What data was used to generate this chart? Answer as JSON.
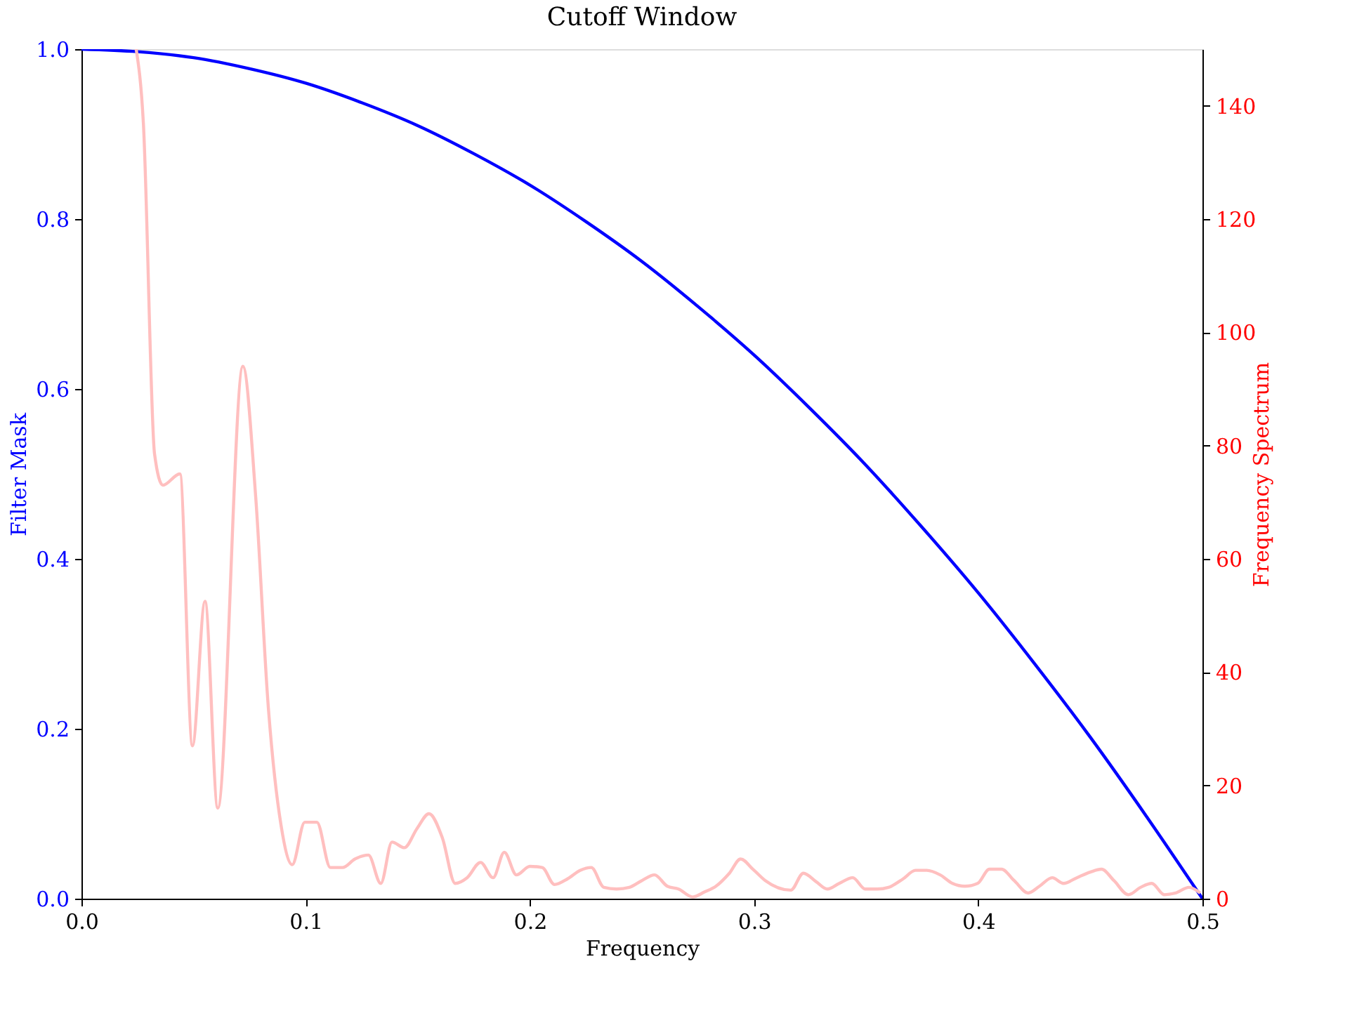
{
  "chart_data": {
    "type": "line",
    "title": "Cutoff Window",
    "xlabel": "Frequency",
    "ylabel": "Filter Mask",
    "y2label": "Frequency Spectrum",
    "xlim": [
      0,
      0.5
    ],
    "xticks": [
      {
        "value": 0,
        "label": "0.0"
      },
      0.1,
      0.2,
      0.3,
      0.4,
      0.5
    ],
    "ylim": [
      0,
      1
    ],
    "yticks": [
      {
        "value": 0,
        "label": "0.0"
      },
      0.2,
      0.4,
      0.6,
      0.8,
      {
        "value": 1,
        "label": "1.0"
      }
    ],
    "y2lim": [
      0,
      150
    ],
    "y2ticks": [
      0,
      20,
      40,
      60,
      80,
      100,
      120,
      140
    ],
    "grid": false,
    "marker": "none",
    "line_style": "solid",
    "series": [
      {
        "color": "#0000ff",
        "x": [
          0,
          0.025,
          0.05,
          0.075,
          0.1,
          0.125,
          0.15,
          0.175,
          0.2,
          0.225,
          0.25,
          0.275,
          0.3,
          0.325,
          0.35,
          0.375,
          0.4,
          0.425,
          0.45,
          0.475,
          0.5
        ],
        "values": [
          1,
          0.997,
          0.99,
          0.977,
          0.96,
          0.937,
          0.91,
          0.877,
          0.84,
          0.797,
          0.75,
          0.697,
          0.64,
          0.577,
          0.51,
          0.437,
          0.36,
          0.277,
          0.19,
          0.097,
          0
        ]
      },
      {
        "color": "#ffbfbf",
        "axis": "y2",
        "x": [
          0.0244,
          0.0276,
          0.0326,
          0.0363,
          0.0439,
          0.0495,
          0.0551,
          0.0608,
          0.072,
          0.0777,
          0.0833,
          0.089,
          0.094,
          0.0996,
          0.105,
          0.111,
          0.1165,
          0.122,
          0.128,
          0.1335,
          0.1385,
          0.144,
          0.1497,
          0.155,
          0.161,
          0.1667,
          0.172,
          0.178,
          0.1836,
          0.1886,
          0.194,
          0.2,
          0.2055,
          0.211,
          0.2168,
          0.2224,
          0.2274,
          0.233,
          0.2387,
          0.2444,
          0.25,
          0.2556,
          0.2613,
          0.2663,
          0.2726,
          0.278,
          0.283,
          0.289,
          0.294,
          0.2995,
          0.305,
          0.3164,
          0.322,
          0.3277,
          0.3327,
          0.338,
          0.344,
          0.3496,
          0.355,
          0.36,
          0.3665,
          0.372,
          0.377,
          0.383,
          0.3885,
          0.394,
          0.3997,
          0.405,
          0.4104,
          0.416,
          0.4223,
          0.4273,
          0.433,
          0.438,
          0.444,
          0.45,
          0.455,
          0.4605,
          0.467,
          0.4724,
          0.4774,
          0.483,
          0.488,
          0.494,
          0.499
        ],
        "values": [
          150,
          137,
          78.5,
          73,
          75,
          27,
          52.5,
          16,
          94,
          71,
          34,
          13,
          6,
          13.5,
          13.5,
          5.5,
          5.5,
          7,
          7.7,
          2.7,
          10,
          9,
          12.4,
          15,
          10.7,
          2.7,
          3.7,
          6.4,
          3.7,
          8.2,
          4.2,
          5.7,
          5.5,
          2.5,
          3.5,
          5,
          5.5,
          2,
          1.7,
          2,
          3.2,
          4.2,
          2.2,
          1.7,
          0.3,
          1.2,
          2.2,
          4.5,
          7,
          5.2,
          3.2,
          1.5,
          4.5,
          3,
          1.7,
          2.7,
          3.7,
          1.7,
          1.7,
          2,
          3.5,
          5,
          5,
          4.2,
          2.7,
          2.2,
          2.7,
          5.2,
          5.2,
          3.2,
          1,
          2.2,
          3.7,
          2.7,
          3.7,
          4.7,
          5.2,
          3.2,
          0.7,
          2,
          2.7,
          0.7,
          1,
          2,
          1
        ]
      }
    ]
  }
}
